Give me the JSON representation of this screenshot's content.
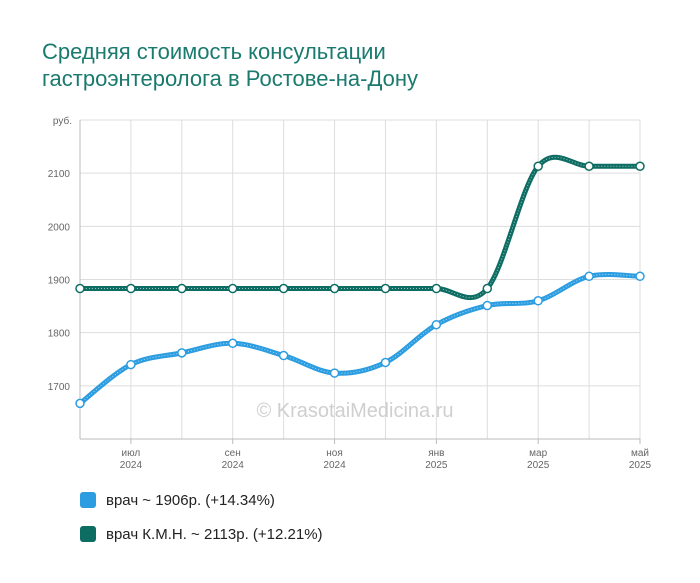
{
  "title_lines": [
    "Средняя стоимость консультации",
    "гастроэнтеролога в Ростове-на-Дону"
  ],
  "watermark": "© KrasotaiMedicina.ru",
  "legend": [
    {
      "text": "врач ~ 1906р. (+14.34%)",
      "color": "#2b9de0"
    },
    {
      "text": "врач К.М.Н. ~ 2113р. (+12.21%)",
      "color": "#0d6d63"
    }
  ],
  "chart_data": {
    "type": "line",
    "ylabel": "руб.",
    "ylim": [
      1600,
      2200
    ],
    "yticks": [
      1700,
      1800,
      1900,
      2000,
      2100
    ],
    "x_labels": [
      {
        "i": 1,
        "m": "июл",
        "y": "2024"
      },
      {
        "i": 3,
        "m": "сен",
        "y": "2024"
      },
      {
        "i": 5,
        "m": "ноя",
        "y": "2024"
      },
      {
        "i": 7,
        "m": "янв",
        "y": "2025"
      },
      {
        "i": 9,
        "m": "мар",
        "y": "2025"
      },
      {
        "i": 11,
        "m": "май",
        "y": "2025"
      }
    ],
    "x": [
      "2024-06",
      "2024-07",
      "2024-08",
      "2024-09",
      "2024-10",
      "2024-11",
      "2024-12",
      "2025-01",
      "2025-02",
      "2025-03",
      "2025-04",
      "2025-05"
    ],
    "series": [
      {
        "name": "врач",
        "color": "#2b9de0",
        "values": [
          1667,
          1740,
          1762,
          1780,
          1757,
          1724,
          1744,
          1815,
          1851,
          1860,
          1906,
          1906
        ]
      },
      {
        "name": "врач К.М.Н.",
        "color": "#0d6d63",
        "values": [
          1883,
          1883,
          1883,
          1883,
          1883,
          1883,
          1883,
          1883,
          1883,
          2113,
          2113,
          2113
        ]
      }
    ]
  }
}
